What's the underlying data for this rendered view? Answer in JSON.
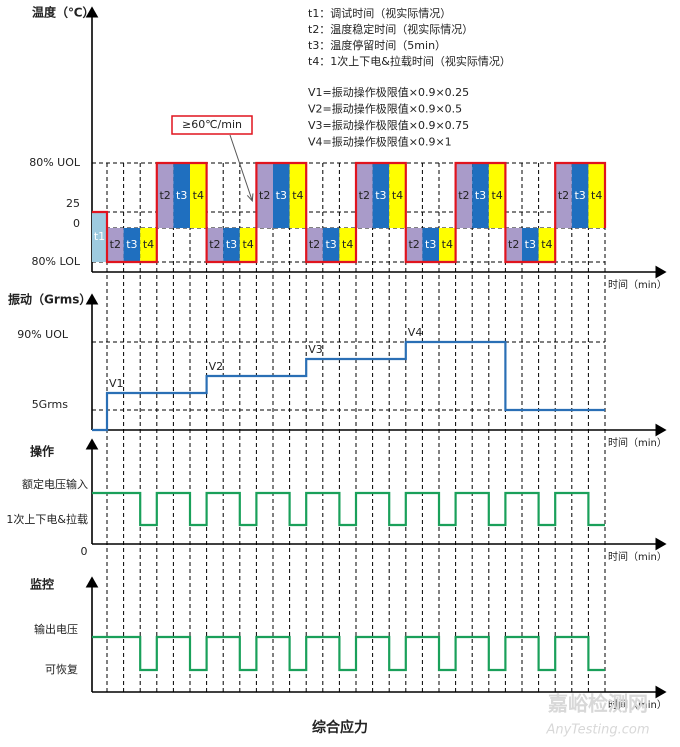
{
  "legend": [
    "t1：调试时间（视实际情况）",
    "t2：温度稳定时间（视实际情况）",
    "t3：温度停留时间（5min）",
    "t4：1次上下电&拉载时间（视实际情况）"
  ],
  "formulas": [
    "V1=振动操作极限值×0.9×0.25",
    "V2=振动操作极限值×0.9×0.5",
    "V3=振动操作极限值×0.9×0.75",
    "V4=振动操作极限值×0.9×1"
  ],
  "ramp_note": "≥60℃/min",
  "phase_labels": [
    "t1",
    "t2",
    "t3",
    "t4"
  ],
  "panels": [
    {
      "title": "温度（℃）",
      "levels": [
        "80% UOL",
        "25",
        "0",
        "80% LOL"
      ],
      "x_label": "时间（min）"
    },
    {
      "title": "振动（Grms）",
      "levels": [
        "90% UOL",
        "5Grms"
      ],
      "steps": [
        "V1",
        "V2",
        "V3",
        "V4"
      ],
      "x_label": "时间（min）"
    },
    {
      "title": "操作",
      "levels": [
        "额定电压输入",
        "1次上下电&拉载"
      ],
      "origin": "0",
      "x_label": "时间（min）"
    },
    {
      "title": "监控",
      "levels": [
        "输出电压",
        "可恢复"
      ],
      "x_label": "时间（min）"
    }
  ],
  "caption": "综合应力",
  "watermark": [
    "嘉峪检测网",
    "AnyTesting.com"
  ]
}
